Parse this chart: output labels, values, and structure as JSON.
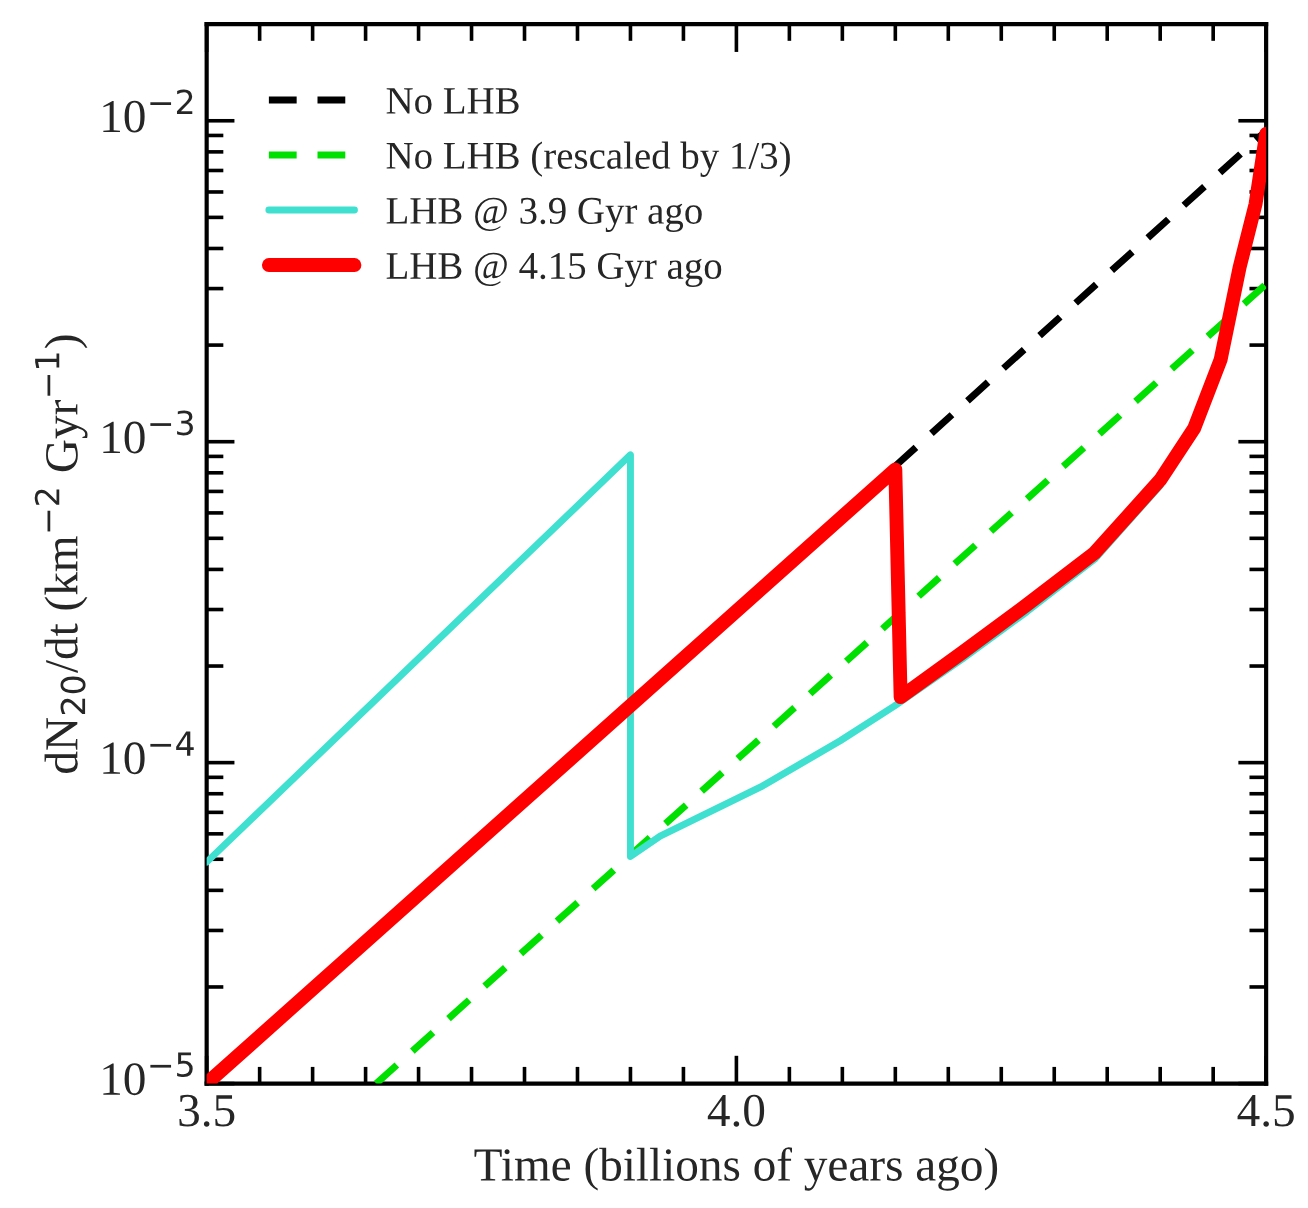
{
  "chart_data": {
    "type": "line",
    "xlabel": "Time (billions of years ago)",
    "ylabel": "dN$_{20}$/dt (km$^{−2}$ Gyr$^{−1}$)",
    "log": "y",
    "xlim": [
      3.5,
      4.5
    ],
    "ylim": [
      1e-05,
      0.02
    ],
    "xticks": [
      3.5,
      {
        "value": 4,
        "label": "4.0"
      },
      4.5
    ],
    "yticks": [
      {
        "value": 1e-05,
        "label": "10$^{−5}$"
      },
      {
        "value": 0.0001,
        "label": "10$^{−4}$"
      },
      {
        "value": 0.001,
        "label": "10$^{−3}$"
      },
      {
        "value": 0.01,
        "label": "10$^{−2}$"
      }
    ],
    "grid": false,
    "legend": "top left",
    "marker": "none",
    "series": [
      {
        "name": "No LHB",
        "color": "#000000",
        "line_style": "dashed",
        "x": [
          4.15,
          4.5
        ],
        "values": [
          0.00084,
          0.0093
        ]
      },
      {
        "name": "No LHB (rescaled by 1/3)",
        "color": "#00e000",
        "line_style": "dashed",
        "x": [
          3.66,
          4.5
        ],
        "values": [
          1e-05,
          0.0031
        ]
      },
      {
        "name": "LHB @ 3.9 Gyr ago",
        "color": "#40e0d0",
        "line_style": "solid",
        "x": [
          3.5,
          3.9,
          3.9,
          3.928,
          4.023,
          4.098,
          4.149,
          4.213,
          4.274,
          4.338,
          4.4
        ],
        "values": [
          4.9e-05,
          0.00091,
          5.1e-05,
          5.9e-05,
          8.4e-05,
          0.000117,
          0.00015,
          0.00021,
          0.000295,
          0.00043,
          0.00073
        ]
      },
      {
        "name": "LHB @ 4.15 Gyr ago",
        "color": "#ff0000",
        "line_style": "solid",
        "x": [
          3.5,
          4.15,
          4.155,
          4.213,
          4.274,
          4.338,
          4.4,
          4.432,
          4.457,
          4.475,
          4.49,
          4.5
        ],
        "values": [
          1e-05,
          0.00082,
          0.00016,
          0.00022,
          0.00031,
          0.00045,
          0.00076,
          0.0011,
          0.0018,
          0.0035,
          0.0055,
          0.0091
        ]
      }
    ]
  }
}
